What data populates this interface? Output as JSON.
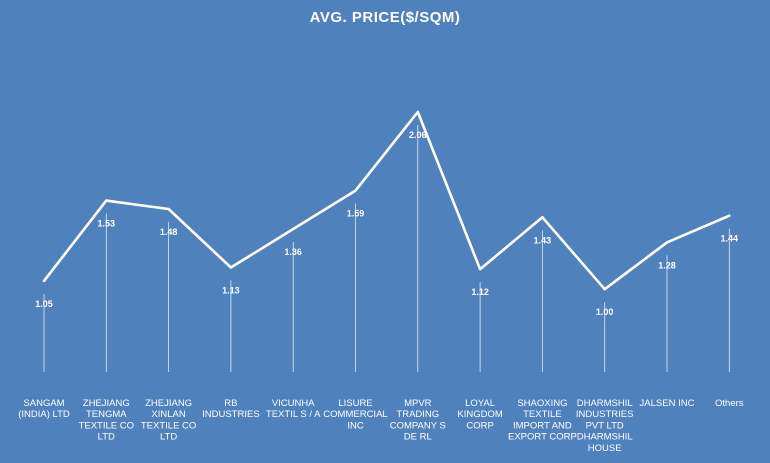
{
  "chart_data": {
    "type": "line",
    "title": "AVG. PRICE($/SQM)",
    "categories": [
      [
        "SANGAM",
        "(INDIA) LTD"
      ],
      [
        "ZHEJIANG",
        "TENGMA",
        "TEXTILE  CO",
        "LTD"
      ],
      [
        "ZHEJIANG",
        "XINLAN",
        "TEXTILE  CO",
        "LTD"
      ],
      [
        "RB",
        "INDUSTRIES"
      ],
      [
        "VICUNHA",
        "TEXTIL S / A"
      ],
      [
        "LISURE",
        "COMMERCIAL",
        "INC"
      ],
      [
        "MPVR",
        "TRADING",
        "COMPANY  S",
        "DE RL"
      ],
      [
        "LOYAL",
        "KINGDOM",
        "CORP"
      ],
      [
        "SHAOXING",
        "TEXTILE",
        "IMPORT AND",
        "EXPORT  CORP"
      ],
      [
        "DHARMSHIL",
        "INDUSTRIES",
        "PVT LTD",
        "DHARMSHIL",
        "HOUSE"
      ],
      [
        "JALSEN  INC"
      ],
      [
        "Others"
      ]
    ],
    "value_labels": [
      "1.05",
      "1.53",
      "1.48",
      "1.13",
      "1.36",
      "1.59",
      "2.06",
      "1.12",
      "1.43",
      "1.00",
      "1.28",
      "1.44"
    ],
    "values": [
      1.05,
      1.53,
      1.48,
      1.13,
      1.36,
      1.59,
      2.06,
      1.12,
      1.43,
      1.0,
      1.28,
      1.44
    ],
    "xlabel": "",
    "ylabel": "",
    "grid": false,
    "legend": "none",
    "drop_lines": true,
    "colors": {
      "background": "#4f81bd",
      "line": "#ffffff",
      "text": "#ffffff"
    }
  }
}
